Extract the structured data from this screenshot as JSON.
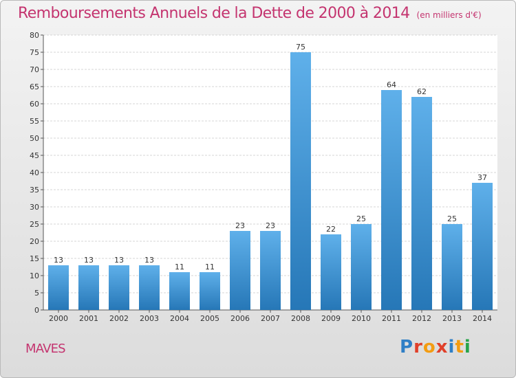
{
  "title": "Remboursements Annuels de la Dette de 2000 à 2014",
  "unit": "(en milliers d'€)",
  "commune": "MAVES",
  "logo": {
    "text": "Proxiti",
    "colors": [
      "#2f7fc6",
      "#e0402a",
      "#f39c12",
      "#e0402a",
      "#2f7fc6",
      "#f39c12",
      "#27a44a"
    ]
  },
  "colors": {
    "title": "#c4346f",
    "bar_top": "#5fb0ea",
    "bar_bottom": "#2677b7"
  },
  "chart_data": {
    "type": "bar",
    "categories": [
      "2000",
      "2001",
      "2002",
      "2003",
      "2004",
      "2005",
      "2006",
      "2007",
      "2008",
      "2009",
      "2010",
      "2011",
      "2012",
      "2013",
      "2014"
    ],
    "values": [
      13,
      13,
      13,
      13,
      11,
      11,
      23,
      23,
      75,
      22,
      25,
      64,
      62,
      25,
      37
    ],
    "ylim": [
      0,
      80
    ],
    "yticks": [
      0,
      5,
      10,
      15,
      20,
      25,
      30,
      35,
      40,
      45,
      50,
      55,
      60,
      65,
      70,
      75,
      80
    ],
    "grid": true
  }
}
